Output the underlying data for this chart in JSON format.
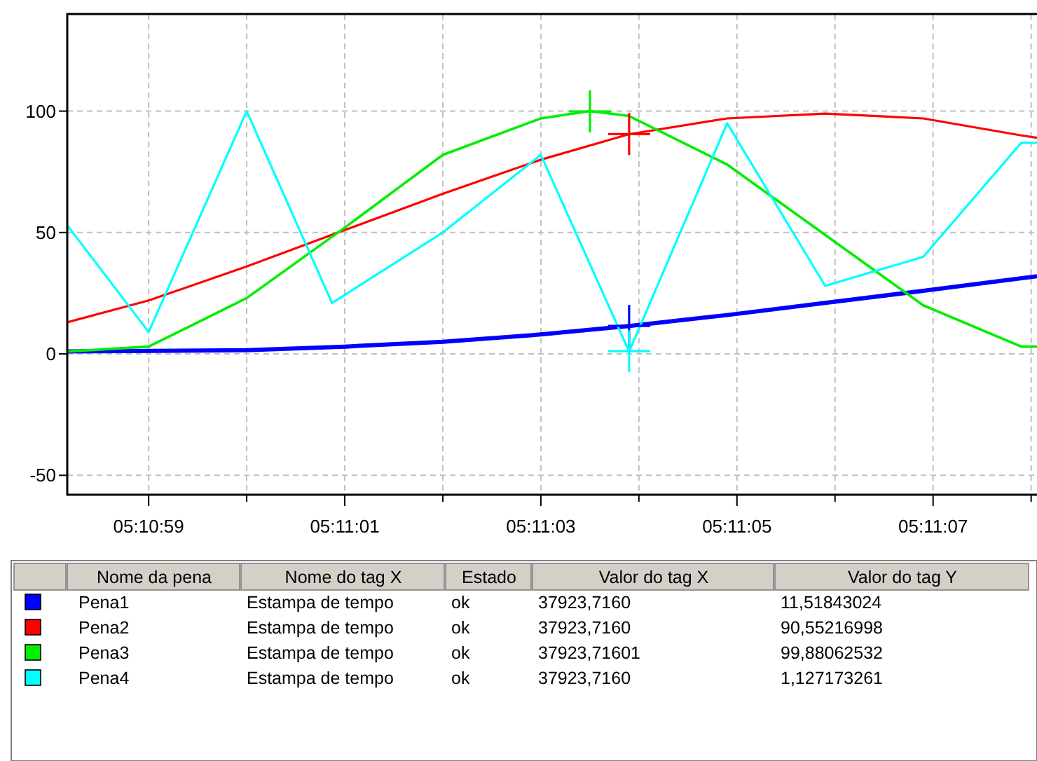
{
  "chart_data": {
    "type": "line",
    "ylim": [
      -58,
      140
    ],
    "yticks": [
      -50,
      0,
      50,
      100
    ],
    "xlim": [
      5.182825,
      5.1855722
    ],
    "xticks": [
      {
        "value": 5.1830556,
        "label": "05:10:59"
      },
      {
        "value": 5.1833333,
        "label": null
      },
      {
        "value": 5.1836111,
        "label": "05:11:01"
      },
      {
        "value": 5.1838889,
        "label": null
      },
      {
        "value": 5.1841667,
        "label": "05:11:03"
      },
      {
        "value": 5.1844444,
        "label": null
      },
      {
        "value": 5.1847222,
        "label": "05:11:05"
      },
      {
        "value": 5.185,
        "label": null
      },
      {
        "value": 5.1852778,
        "label": "05:11:07"
      },
      {
        "value": 5.1855556,
        "label": null
      }
    ],
    "grid": true,
    "legend": "bottom",
    "series": [
      {
        "name": "Pena1",
        "color": "#0000ff",
        "x": [
          5.182825,
          5.1833333,
          5.1836111,
          5.1838889,
          5.1841667,
          5.1844167,
          5.1846944,
          5.1849722,
          5.18525,
          5.1855722
        ],
        "values": [
          1,
          1.5,
          3,
          5,
          8,
          11.5,
          16,
          21,
          26,
          32
        ]
      },
      {
        "name": "Pena2",
        "color": "#ff0000",
        "x": [
          5.182825,
          5.1830556,
          5.1833333,
          5.1836111,
          5.1838889,
          5.1841667,
          5.1844167,
          5.1846944,
          5.1849722,
          5.18525,
          5.1855278,
          5.1855722
        ],
        "values": [
          13,
          22,
          36,
          51,
          66,
          80,
          90.5,
          97,
          99,
          97,
          90,
          89
        ]
      },
      {
        "name": "Pena3",
        "color": "#00ee00",
        "x": [
          5.182825,
          5.1830556,
          5.1833333,
          5.1836111,
          5.1838889,
          5.1841667,
          5.1843056,
          5.1844167,
          5.1846944,
          5.1849722,
          5.18525,
          5.1855278,
          5.1855722
        ],
        "values": [
          1,
          3,
          23,
          52,
          82,
          97,
          100,
          98,
          78,
          49,
          20,
          3,
          3
        ]
      },
      {
        "name": "Pena4",
        "color": "#00ffff",
        "x": [
          5.182825,
          5.1830556,
          5.1833333,
          5.183575,
          5.1838889,
          5.1841667,
          5.1844167,
          5.1846944,
          5.1849722,
          5.18525,
          5.1855278,
          5.1855722
        ],
        "values": [
          53,
          9,
          100,
          21,
          50,
          82,
          1,
          95,
          28,
          40,
          87,
          87
        ]
      },
      {
        "type": "scatter",
        "marker": "cross",
        "color": "#0000ff",
        "x": [
          5.1844167
        ],
        "values": [
          11.51843024
        ]
      },
      {
        "type": "scatter",
        "marker": "cross",
        "color": "#ff0000",
        "x": [
          5.1844167
        ],
        "values": [
          90.55216998
        ]
      },
      {
        "type": "scatter",
        "marker": "cross",
        "color": "#00ee00",
        "x": [
          5.1843056
        ],
        "values": [
          99.88062532
        ]
      },
      {
        "type": "scatter",
        "marker": "cross",
        "color": "#00ffff",
        "x": [
          5.1844167
        ],
        "values": [
          1.127173261
        ]
      }
    ],
    "annotations": [
      "Nome da pena",
      "Nome do tag X",
      "Estado",
      "Valor do tag X",
      "Valor do tag Y",
      "Estampa de tempo",
      "ok",
      "37923,7160",
      "11,51843024",
      "Estampa de tempo",
      "ok",
      "37923,7160",
      "90,55216998",
      "Estampa de tempo",
      "ok",
      "37923,71601",
      "99,88062532",
      "Estampa de tempo",
      "ok",
      "37923,7160",
      "1,127173261"
    ]
  }
}
